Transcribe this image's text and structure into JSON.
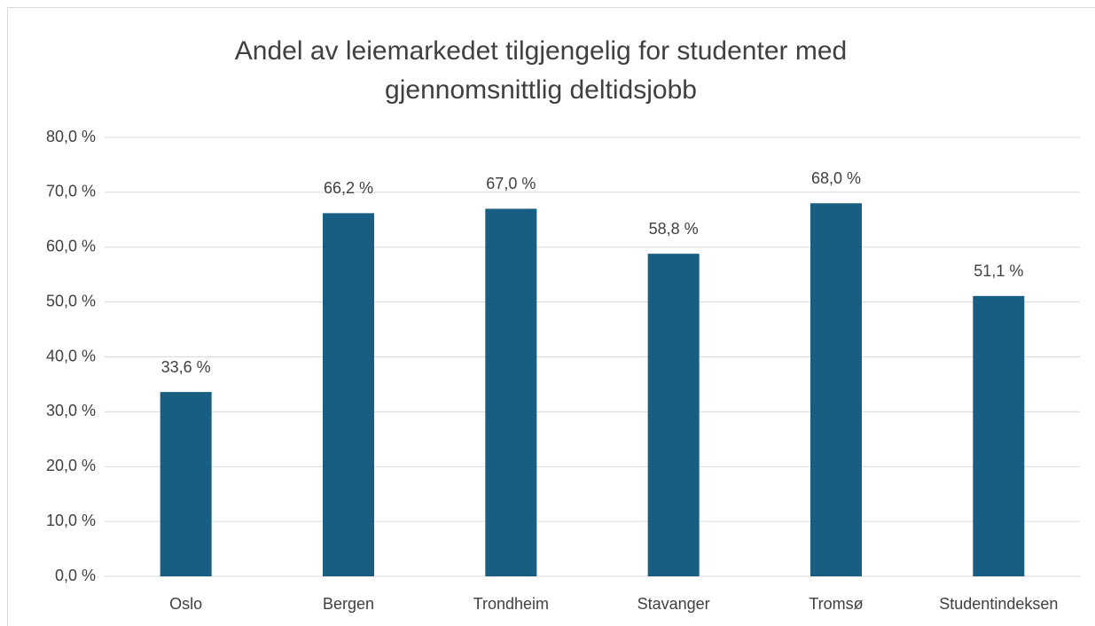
{
  "chart_data": {
    "type": "bar",
    "title": "Andel av leiemarkedet tilgjengelig for studenter med gjennomsnittlig deltidsjobb",
    "categories": [
      "Oslo",
      "Bergen",
      "Trondheim",
      "Stavanger",
      "Tromsø",
      "Studentindeksen"
    ],
    "values": [
      33.6,
      66.2,
      67.0,
      58.8,
      68.0,
      51.1
    ],
    "value_labels": [
      "33,6 %",
      "66,2 %",
      "67,0 %",
      "58,8 %",
      "68,0 %",
      "51,1 %"
    ],
    "color": "#175e82",
    "ylim": [
      0,
      80
    ],
    "yticks": [
      {
        "value": 0,
        "label": "0,0 %"
      },
      {
        "value": 10,
        "label": "10,0 %"
      },
      {
        "value": 20,
        "label": "20,0 %"
      },
      {
        "value": 30,
        "label": "30,0 %"
      },
      {
        "value": 40,
        "label": "40,0 %"
      },
      {
        "value": 50,
        "label": "50,0 %"
      },
      {
        "value": 60,
        "label": "60,0 %"
      },
      {
        "value": 70,
        "label": "70,0 %"
      },
      {
        "value": 80,
        "label": "80,0 %"
      }
    ],
    "grid": true
  }
}
